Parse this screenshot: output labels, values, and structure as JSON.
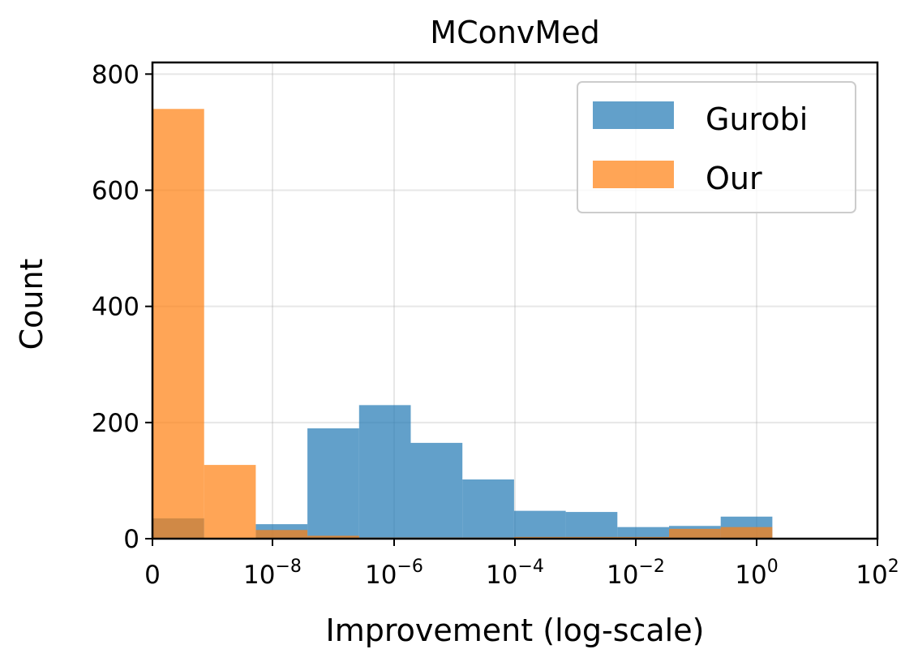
{
  "chart_data": {
    "type": "bar",
    "title": "MConvMed",
    "xlabel": "Improvement (log-scale)",
    "ylabel": "Count",
    "ylim": [
      0,
      820
    ],
    "x_scale": "symlog",
    "x_ticks": [
      {
        "base": "0",
        "exp": ""
      },
      {
        "base": "10",
        "exp": "−8"
      },
      {
        "base": "10",
        "exp": "−6"
      },
      {
        "base": "10",
        "exp": "−4"
      },
      {
        "base": "10",
        "exp": "−2"
      },
      {
        "base": "10",
        "exp": "0"
      },
      {
        "base": "10",
        "exp": "2"
      }
    ],
    "y_ticks": [
      "0",
      "200",
      "400",
      "600",
      "800"
    ],
    "y_tick_values": [
      0,
      200,
      400,
      600,
      800
    ],
    "grid": true,
    "legend_position": "top-right",
    "bin_count": 12,
    "series": [
      {
        "name": "Gurobi",
        "color": "#1f77b4",
        "values": [
          35,
          0,
          25,
          190,
          230,
          165,
          102,
          48,
          46,
          20,
          22,
          38
        ]
      },
      {
        "name": "Our",
        "color": "#ff7f0e",
        "values": [
          740,
          127,
          15,
          5,
          2,
          2,
          2,
          3,
          3,
          3,
          17,
          20
        ]
      }
    ]
  }
}
